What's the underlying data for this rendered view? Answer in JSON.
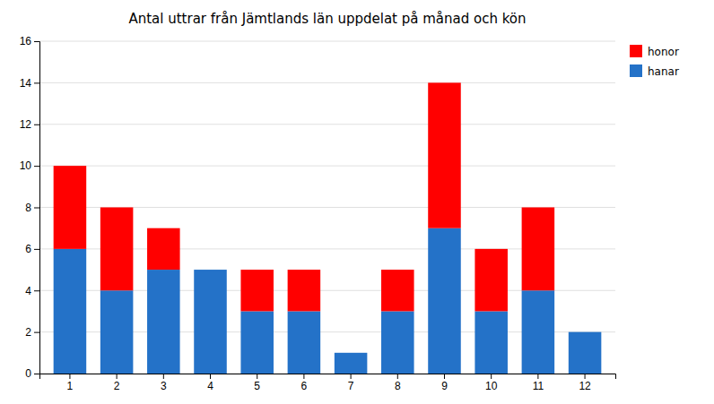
{
  "chart_data": {
    "type": "bar",
    "stacked": true,
    "title": "Antal uttrar från Jämtlands län uppdelat på månad och kön",
    "categories": [
      "1",
      "2",
      "3",
      "4",
      "5",
      "6",
      "7",
      "8",
      "9",
      "10",
      "11",
      "12"
    ],
    "series": [
      {
        "name": "hanar",
        "color": "#2472C8",
        "values": [
          6,
          4,
          5,
          5,
          3,
          3,
          1,
          3,
          7,
          3,
          4,
          2
        ]
      },
      {
        "name": "honor",
        "color": "#FF0000",
        "values": [
          4,
          4,
          2,
          0,
          2,
          2,
          0,
          2,
          7,
          3,
          4,
          0
        ]
      }
    ],
    "ylim": [
      0,
      16
    ],
    "yticks": [
      0,
      2,
      4,
      6,
      8,
      10,
      12,
      14,
      16
    ],
    "grid": true,
    "legend": "upper right"
  }
}
